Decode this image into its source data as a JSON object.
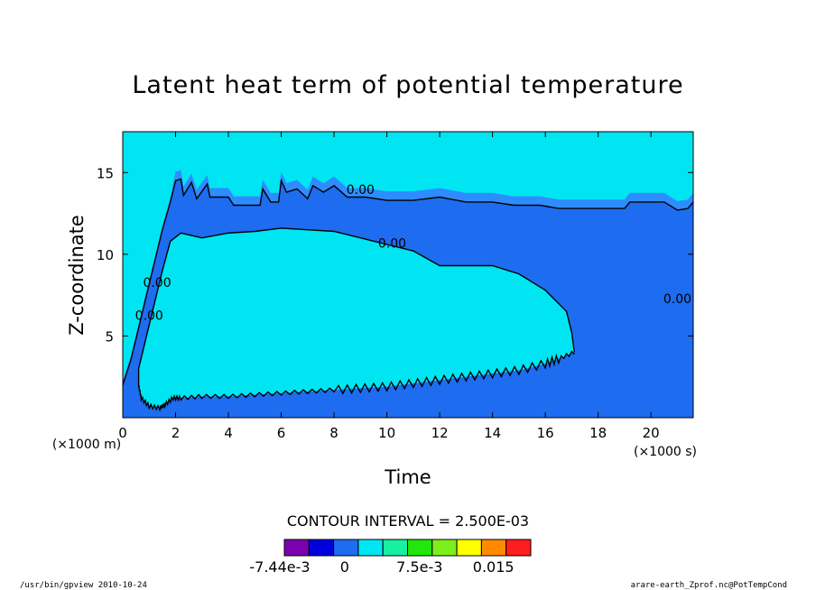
{
  "chart_data": {
    "type": "contour",
    "title": "Latent heat term of potential temperature",
    "xlabel": "Time",
    "ylabel": "Z-coordinate",
    "x_unit": "(×1000 s)",
    "y_unit": "(×1000 m)",
    "xlim": [
      0,
      21.6
    ],
    "ylim": [
      0,
      17.5
    ],
    "x_ticks": [
      0,
      2,
      4,
      6,
      8,
      10,
      12,
      14,
      16,
      18,
      20
    ],
    "y_ticks": [
      5,
      10,
      15
    ],
    "contour_interval_text": "CONTOUR INTERVAL = 2.500E-03",
    "contour_labels": [
      "0.00",
      "0.00",
      "0.00",
      "0.00",
      "0.00"
    ],
    "colorbar": {
      "colors": [
        "#7a00b0",
        "#0000dd",
        "#1e6cf0",
        "#00e5f2",
        "#16f0a0",
        "#22e60c",
        "#7bf01a",
        "#ffff00",
        "#ff8a00",
        "#ff1e1e"
      ],
      "tick_labels": [
        "-7.44e-3",
        "0",
        "7.5e-3",
        "0.015"
      ]
    },
    "regions": {
      "background_color": "#00e5f2",
      "negative_color": "#1e6cf0",
      "fringe_color": "#2f8cff"
    }
  },
  "footer": {
    "left": "/usr/bin/gpview   2010-10-24",
    "right": "arare-earth_Zprof.nc@PotTempCond"
  }
}
